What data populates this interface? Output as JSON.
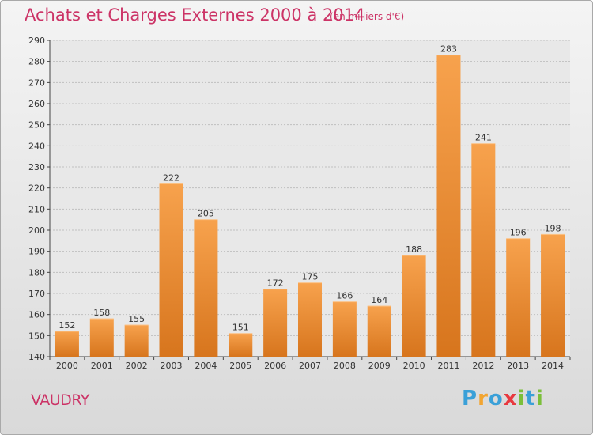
{
  "title": "Achats et Charges Externes 2000 à 2014",
  "subtitle": "(en milliers d'€)",
  "place": "VAUDRY",
  "logo": {
    "text": "Proxiti",
    "letters": [
      {
        "ch": "P",
        "color": "#3aa0d8"
      },
      {
        "ch": "r",
        "color": "#f2a531"
      },
      {
        "ch": "o",
        "color": "#3aa0d8"
      },
      {
        "ch": "x",
        "color": "#e8393f"
      },
      {
        "ch": "i",
        "color": "#7bbf3a"
      },
      {
        "ch": "t",
        "color": "#3aa0d8"
      },
      {
        "ch": "i",
        "color": "#7bbf3a"
      }
    ]
  },
  "colors": {
    "bar_light": "#f7a24d",
    "bar_dark": "#d7751d",
    "title": "#cc3366",
    "grid": "#bfbfbf"
  },
  "chart_data": {
    "type": "bar",
    "categories": [
      "2000",
      "2001",
      "2002",
      "2003",
      "2004",
      "2005",
      "2006",
      "2007",
      "2008",
      "2009",
      "2010",
      "2011",
      "2012",
      "2013",
      "2014"
    ],
    "values": [
      152,
      158,
      155,
      222,
      205,
      151,
      172,
      175,
      166,
      164,
      188,
      283,
      241,
      196,
      198
    ],
    "ylim": [
      140,
      290
    ],
    "yticks": [
      140,
      150,
      160,
      170,
      180,
      190,
      200,
      210,
      220,
      230,
      240,
      250,
      260,
      270,
      280,
      290
    ],
    "grid": true,
    "legend": "none"
  }
}
